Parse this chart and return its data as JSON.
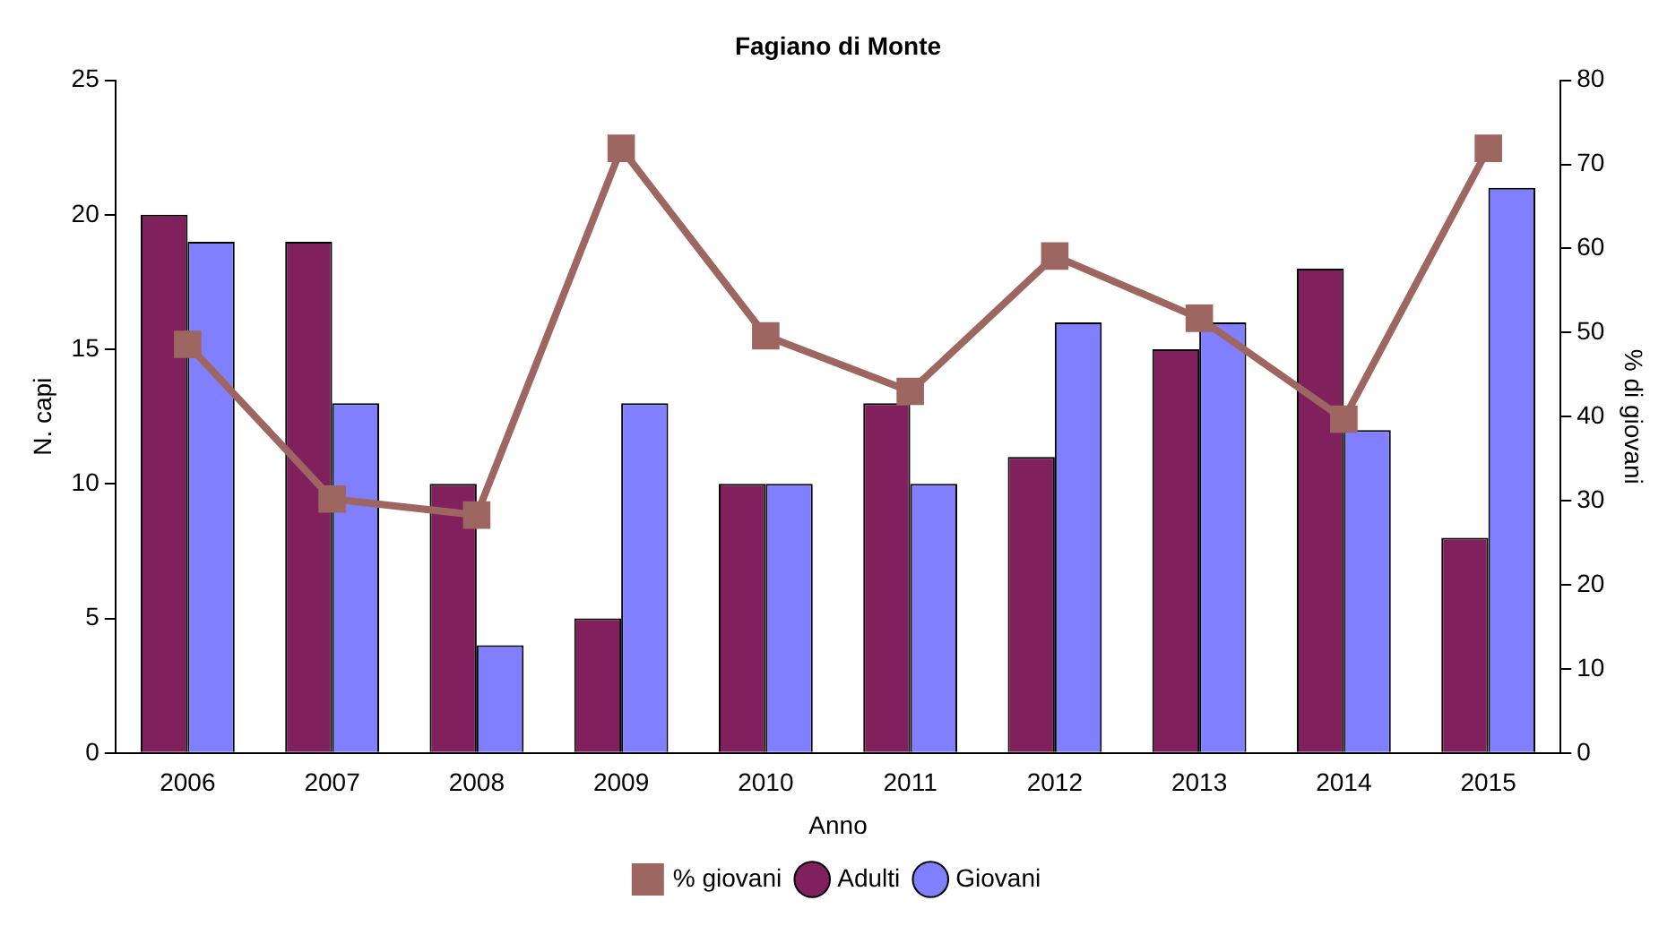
{
  "chart_data": {
    "type": "bar",
    "title": "Fagiano di Monte",
    "xlabel": "Anno",
    "ylabel": "N. capi",
    "y2label": "% di giovani",
    "categories": [
      "2006",
      "2007",
      "2008",
      "2009",
      "2010",
      "2011",
      "2012",
      "2013",
      "2014",
      "2015"
    ],
    "series": [
      {
        "name": "Adulti",
        "color": "#80215e",
        "values": [
          20,
          19,
          10,
          5,
          10,
          13,
          11,
          15,
          18,
          8
        ]
      },
      {
        "name": "Giovani",
        "color": "#8080ff",
        "values": [
          19,
          13,
          4,
          13,
          10,
          10,
          16,
          16,
          12,
          21
        ]
      },
      {
        "name": "% giovani",
        "type": "line",
        "axis": "y2",
        "color": "#9e6660",
        "marker": "square",
        "values": [
          48.6,
          30.2,
          28.3,
          71.9,
          49.6,
          43,
          59.1,
          51.7,
          39.7,
          71.9
        ]
      }
    ],
    "ylim": [
      0,
      25
    ],
    "yticks": [
      0,
      5,
      10,
      15,
      20,
      25
    ],
    "y2lim": [
      0,
      80
    ],
    "y2ticks": [
      0,
      10,
      20,
      30,
      40,
      50,
      60,
      70,
      80
    ],
    "grid": false,
    "legend": "bottom"
  }
}
